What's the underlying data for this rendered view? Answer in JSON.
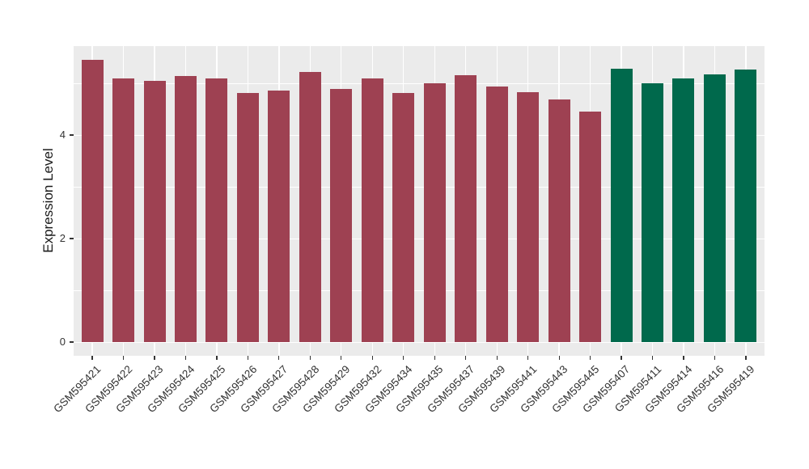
{
  "chart_data": {
    "type": "bar",
    "title": "",
    "xlabel": "",
    "ylabel": "Expression Level",
    "categories": [
      "GSM595421",
      "GSM595422",
      "GSM595423",
      "GSM595424",
      "GSM595425",
      "GSM595426",
      "GSM595427",
      "GSM595428",
      "GSM595429",
      "GSM595432",
      "GSM595434",
      "GSM595435",
      "GSM595437",
      "GSM595439",
      "GSM595441",
      "GSM595443",
      "GSM595445",
      "GSM595407",
      "GSM595411",
      "GSM595414",
      "GSM595416",
      "GSM595419"
    ],
    "values": [
      5.45,
      5.09,
      5.05,
      5.14,
      5.09,
      4.81,
      4.86,
      5.22,
      4.89,
      5.09,
      4.81,
      5.0,
      5.15,
      4.94,
      4.83,
      4.69,
      4.45,
      5.28,
      5.0,
      5.09,
      5.17,
      5.27
    ],
    "bar_groups": [
      "group1",
      "group1",
      "group1",
      "group1",
      "group1",
      "group1",
      "group1",
      "group1",
      "group1",
      "group1",
      "group1",
      "group1",
      "group1",
      "group1",
      "group1",
      "group1",
      "group1",
      "group2",
      "group2",
      "group2",
      "group2",
      "group2"
    ],
    "colors": {
      "group1": "#9E4152",
      "group2": "#00694C"
    },
    "yticks": [
      0,
      2,
      4
    ],
    "yticks_minor": [
      1,
      3,
      5
    ],
    "ylim": [
      -0.28,
      5.73
    ],
    "grid": "on",
    "legend": "none",
    "panel_background": "#EBEBEB",
    "gridline_color": "#FFFFFF",
    "axis_text_color": "#333333"
  }
}
